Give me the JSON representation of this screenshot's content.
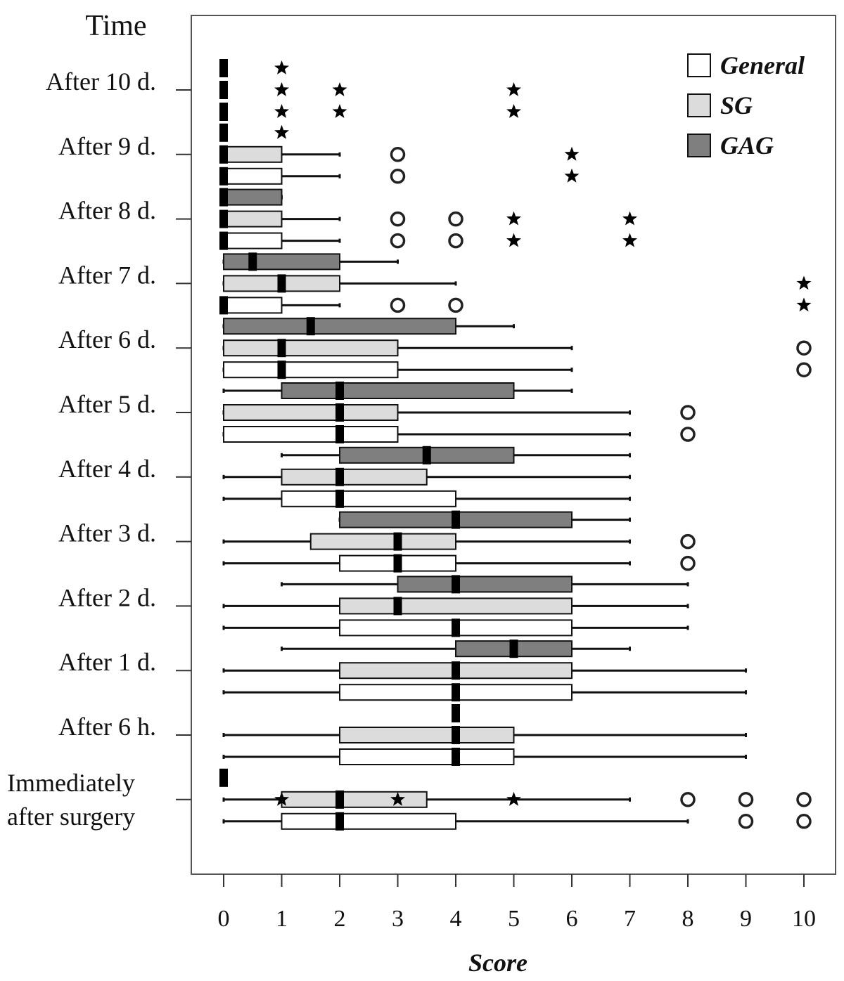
{
  "chart_data": {
    "type": "boxplot",
    "orientation": "horizontal",
    "title": "Time",
    "xlabel": "Score",
    "ylabel": "",
    "xlim": [
      0,
      10
    ],
    "xticks": [
      0,
      1,
      2,
      3,
      4,
      5,
      6,
      7,
      8,
      9,
      10
    ],
    "grid": false,
    "legend": {
      "position": "top-right",
      "entries": [
        "General",
        "SG",
        "GAG"
      ]
    },
    "colors": {
      "General": "#ffffff",
      "SG": "#dcdcdc",
      "GAG": "#7f7f7f"
    },
    "categories": [
      "After 10 d.",
      "After 9 d.",
      "After 8 d.",
      "After 7 d.",
      "After 6 d.",
      "After 5 d.",
      "After 4 d.",
      "After 3 d.",
      "After 2 d.",
      "After 1 d.",
      "After 6 h.",
      "Immediately after surgery"
    ],
    "series": [
      {
        "name": "General",
        "boxes": [
          {
            "time": "After 10 d.",
            "min": 0,
            "q1": 0,
            "median": 0,
            "q3": 0,
            "max": 0,
            "outliers": [],
            "extremes": [
              1,
              2,
              5
            ]
          },
          {
            "time": "After 9 d.",
            "min": 0,
            "q1": 0,
            "median": 0,
            "q3": 1,
            "max": 2,
            "outliers": [
              3
            ],
            "extremes": [
              6
            ]
          },
          {
            "time": "After 8 d.",
            "min": 0,
            "q1": 0,
            "median": 0,
            "q3": 1,
            "max": 2,
            "outliers": [
              3,
              4
            ],
            "extremes": [
              5,
              7
            ]
          },
          {
            "time": "After 7 d.",
            "min": 0,
            "q1": 0,
            "median": 0,
            "q3": 1,
            "max": 2,
            "outliers": [
              3,
              4
            ],
            "extremes": [
              10
            ]
          },
          {
            "time": "After 6 d.",
            "min": 0,
            "q1": 0,
            "median": 1,
            "q3": 3,
            "max": 6,
            "outliers": [
              10
            ],
            "extremes": []
          },
          {
            "time": "After 5 d.",
            "min": 0,
            "q1": 0,
            "median": 2,
            "q3": 3,
            "max": 7,
            "outliers": [
              8
            ],
            "extremes": []
          },
          {
            "time": "After 4 d.",
            "min": 0,
            "q1": 1,
            "median": 2,
            "q3": 4,
            "max": 7,
            "outliers": [],
            "extremes": []
          },
          {
            "time": "After 3 d.",
            "min": 0,
            "q1": 2,
            "median": 3,
            "q3": 4,
            "max": 7,
            "outliers": [
              8
            ],
            "extremes": []
          },
          {
            "time": "After 2 d.",
            "min": 0,
            "q1": 2,
            "median": 4,
            "q3": 6,
            "max": 8,
            "outliers": [],
            "extremes": []
          },
          {
            "time": "After 1 d.",
            "min": 0,
            "q1": 2,
            "median": 4,
            "q3": 6,
            "max": 9,
            "outliers": [],
            "extremes": []
          },
          {
            "time": "After 6 h.",
            "min": 0,
            "q1": 2,
            "median": 4,
            "q3": 5,
            "max": 9,
            "outliers": [],
            "extremes": []
          },
          {
            "time": "Immediately after surgery",
            "min": 0,
            "q1": 1,
            "median": 2,
            "q3": 4,
            "max": 8,
            "outliers": [
              9,
              10
            ],
            "extremes": []
          }
        ]
      },
      {
        "name": "SG",
        "boxes": [
          {
            "time": "After 10 d.",
            "min": 0,
            "q1": 0,
            "median": 0,
            "q3": 0,
            "max": 0,
            "outliers": [],
            "extremes": [
              1,
              2,
              5
            ]
          },
          {
            "time": "After 9 d.",
            "min": 0,
            "q1": 0,
            "median": 0,
            "q3": 1,
            "max": 2,
            "outliers": [
              3
            ],
            "extremes": [
              6
            ]
          },
          {
            "time": "After 8 d.",
            "min": 0,
            "q1": 0,
            "median": 0,
            "q3": 1,
            "max": 2,
            "outliers": [
              3,
              4
            ],
            "extremes": [
              5,
              7
            ]
          },
          {
            "time": "After 7 d.",
            "min": 0,
            "q1": 0,
            "median": 1,
            "q3": 2,
            "max": 4,
            "outliers": [],
            "extremes": [
              10
            ]
          },
          {
            "time": "After 6 d.",
            "min": 0,
            "q1": 0,
            "median": 1,
            "q3": 3,
            "max": 6,
            "outliers": [
              10
            ],
            "extremes": []
          },
          {
            "time": "After 5 d.",
            "min": 0,
            "q1": 0,
            "median": 2,
            "q3": 3,
            "max": 7,
            "outliers": [
              8
            ],
            "extremes": []
          },
          {
            "time": "After 4 d.",
            "min": 0,
            "q1": 1,
            "median": 2,
            "q3": 3.5,
            "max": 7,
            "outliers": [],
            "extremes": []
          },
          {
            "time": "After 3 d.",
            "min": 0,
            "q1": 1.5,
            "median": 3,
            "q3": 4,
            "max": 7,
            "outliers": [
              8
            ],
            "extremes": []
          },
          {
            "time": "After 2 d.",
            "min": 0,
            "q1": 2,
            "median": 3,
            "q3": 6,
            "max": 8,
            "outliers": [],
            "extremes": []
          },
          {
            "time": "After 1 d.",
            "min": 0,
            "q1": 2,
            "median": 4,
            "q3": 6,
            "max": 9,
            "outliers": [],
            "extremes": []
          },
          {
            "time": "After 6 h.",
            "min": 0,
            "q1": 2,
            "median": 4,
            "q3": 5,
            "max": 9,
            "outliers": [],
            "extremes": []
          },
          {
            "time": "Immediately after surgery",
            "min": 0,
            "q1": 1,
            "median": 2,
            "q3": 3.5,
            "max": 7,
            "outliers": [
              8,
              9,
              10
            ],
            "extremes": [
              1,
              3,
              5
            ]
          }
        ]
      },
      {
        "name": "GAG",
        "boxes": [
          {
            "time": "After 10 d.",
            "min": 0,
            "q1": 0,
            "median": 0,
            "q3": 0,
            "max": 0,
            "outliers": [],
            "extremes": [
              1
            ]
          },
          {
            "time": "After 9 d.",
            "min": 0,
            "q1": 0,
            "median": 0,
            "q3": 0,
            "max": 0,
            "outliers": [],
            "extremes": [
              1
            ]
          },
          {
            "time": "After 8 d.",
            "min": 0,
            "q1": 0,
            "median": 0,
            "q3": 1,
            "max": 1,
            "outliers": [],
            "extremes": []
          },
          {
            "time": "After 7 d.",
            "min": 0,
            "q1": 0,
            "median": 0.5,
            "q3": 2,
            "max": 3,
            "outliers": [],
            "extremes": []
          },
          {
            "time": "After 6 d.",
            "min": 0,
            "q1": 0,
            "median": 1.5,
            "q3": 4,
            "max": 5,
            "outliers": [],
            "extremes": []
          },
          {
            "time": "After 5 d.",
            "min": 0,
            "q1": 1,
            "median": 2,
            "q3": 5,
            "max": 6,
            "outliers": [],
            "extremes": []
          },
          {
            "time": "After 4 d.",
            "min": 1,
            "q1": 2,
            "median": 3.5,
            "q3": 5,
            "max": 7,
            "outliers": [],
            "extremes": []
          },
          {
            "time": "After 3 d.",
            "min": 2,
            "q1": 2,
            "median": 4,
            "q3": 6,
            "max": 7,
            "outliers": [],
            "extremes": []
          },
          {
            "time": "After 2 d.",
            "min": 1,
            "q1": 3,
            "median": 4,
            "q3": 6,
            "max": 8,
            "outliers": [],
            "extremes": []
          },
          {
            "time": "After 1 d.",
            "min": 1,
            "q1": 4,
            "median": 5,
            "q3": 6,
            "max": 7,
            "outliers": [],
            "extremes": []
          },
          {
            "time": "After 6 h.",
            "min": 4,
            "q1": 4,
            "median": 4,
            "q3": 4,
            "max": 4,
            "outliers": [],
            "extremes": []
          },
          {
            "time": "Immediately after surgery",
            "min": 0,
            "q1": 0,
            "median": 0,
            "q3": 0,
            "max": 0,
            "outliers": [],
            "extremes": []
          }
        ]
      }
    ]
  }
}
